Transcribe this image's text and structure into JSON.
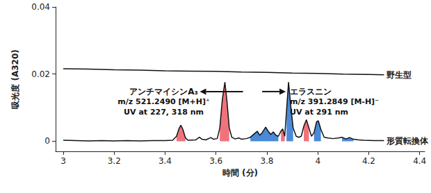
{
  "chart_data": {
    "type": "line",
    "x_label": "時間 (分)",
    "y_label": "吸光度 (A320)",
    "xlim": [
      2.97,
      4.42
    ],
    "xticks": [
      3,
      3.2,
      3.4,
      3.6,
      3.8,
      4,
      4.2,
      4.4
    ],
    "ylim": [
      -0.003,
      0.04
    ],
    "yticks": [
      0,
      0.02,
      0.04
    ],
    "grid": false,
    "series": [
      {
        "name": "野生型",
        "color": "#111111",
        "x": [
          3.0,
          3.1,
          3.2,
          3.3,
          3.4,
          3.5,
          3.6,
          3.7,
          3.8,
          3.9,
          4.0,
          4.1,
          4.2,
          4.26
        ],
        "values": [
          0.0216,
          0.0215,
          0.0213,
          0.0212,
          0.021,
          0.0209,
          0.0208,
          0.0206,
          0.0205,
          0.0203,
          0.0202,
          0.02,
          0.0199,
          0.0198
        ]
      },
      {
        "name": "形質転換体",
        "color": "#111111",
        "x": [
          3.0,
          3.05,
          3.1,
          3.15,
          3.2,
          3.25,
          3.3,
          3.35,
          3.4,
          3.43,
          3.445,
          3.455,
          3.462,
          3.47,
          3.48,
          3.49,
          3.52,
          3.535,
          3.545,
          3.56,
          3.58,
          3.59,
          3.605,
          3.615,
          3.625,
          3.635,
          3.643,
          3.652,
          3.662,
          3.675,
          3.69,
          3.7,
          3.72,
          3.735,
          3.75,
          3.762,
          3.772,
          3.782,
          3.795,
          3.805,
          3.815,
          3.825,
          3.835,
          3.845,
          3.855,
          3.862,
          3.87,
          3.877,
          3.885,
          3.893,
          3.903,
          3.915,
          3.925,
          3.935,
          3.945,
          3.955,
          3.965,
          3.975,
          3.985,
          3.995,
          4.002,
          4.012,
          4.025,
          4.04,
          4.06,
          4.08,
          4.095,
          4.11,
          4.125,
          4.14,
          4.16,
          4.18,
          4.22,
          4.26
        ],
        "values": [
          0.0003,
          0.0002,
          0.0001,
          0.0002,
          0.0001,
          0.0002,
          0.0001,
          0.0002,
          0.0002,
          0.0003,
          0.0015,
          0.0038,
          0.0048,
          0.0035,
          0.001,
          0.0003,
          0.0004,
          0.0012,
          0.0006,
          0.0004,
          0.0011,
          0.0006,
          0.0008,
          0.004,
          0.0125,
          0.0176,
          0.012,
          0.004,
          0.0012,
          0.0007,
          0.001,
          0.0006,
          0.0008,
          0.0012,
          0.0022,
          0.003,
          0.0018,
          0.0026,
          0.0042,
          0.003,
          0.002,
          0.0028,
          0.0018,
          0.0015,
          0.003,
          0.0037,
          0.0015,
          0.009,
          0.0176,
          0.011,
          0.004,
          0.0015,
          0.0012,
          0.0015,
          0.0045,
          0.0064,
          0.004,
          0.0015,
          0.0025,
          0.0058,
          0.0061,
          0.0035,
          0.0012,
          0.001,
          0.0008,
          0.001,
          0.0012,
          0.0007,
          0.0011,
          0.0006,
          0.0004,
          0.0003,
          0.0002,
          0.0002
        ],
        "filled_peaks": [
          {
            "from": 3.44,
            "to": 3.485,
            "color": "#f0737c"
          },
          {
            "from": 3.608,
            "to": 3.66,
            "color": "#f0737c"
          },
          {
            "from": 3.848,
            "to": 3.87,
            "color": "#f0737c"
          },
          {
            "from": 3.938,
            "to": 3.972,
            "color": "#f0737c"
          },
          {
            "from": 3.735,
            "to": 3.845,
            "color": "#4a8ad8"
          },
          {
            "from": 3.872,
            "to": 3.91,
            "color": "#4a8ad8"
          },
          {
            "from": 3.978,
            "to": 4.02,
            "color": "#4a8ad8"
          },
          {
            "from": 4.085,
            "to": 4.14,
            "color": "#4a8ad8"
          }
        ]
      }
    ],
    "annotations": [
      {
        "lines": [
          "アンチマイシンA₃",
          "m/z 521.2490 [M+H]⁺",
          "UV at 227, 318 nm"
        ],
        "x": 3.635,
        "y": 0.0148
      },
      {
        "lines": [
          "エラスニン",
          "m/z 391.2849 [M-H]⁻",
          "UV at 291 nm"
        ],
        "x": 3.885,
        "y": 0.0148
      }
    ]
  }
}
